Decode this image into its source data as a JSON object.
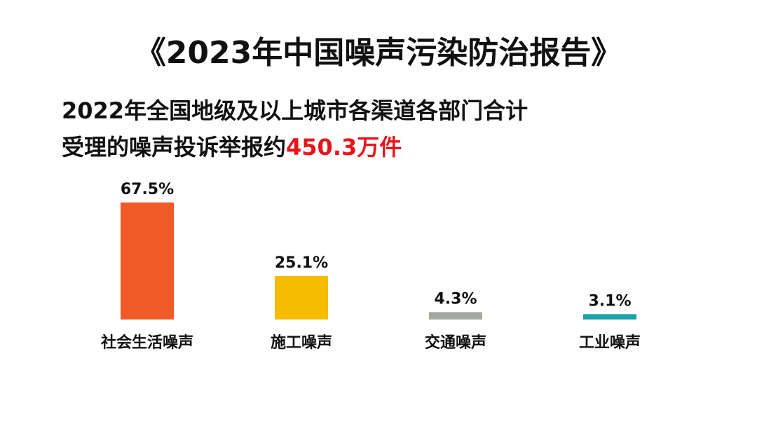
{
  "chart_data": {
    "type": "bar",
    "title": "《2023年中国噪声污染防治报告》",
    "subtitle": [
      "2022年全国地级及以上城市各渠道各部门合计",
      "受理的噪声投诉举报约"
    ],
    "subtitle_highlight": "450.3万件",
    "categories": [
      "社会生活噪声",
      "施工噪声",
      "交通噪声",
      "工业噪声"
    ],
    "values": [
      67.5,
      25.1,
      4.3,
      3.1
    ],
    "value_labels": [
      "67.5%",
      "25.1%",
      "4.3%",
      "3.1%"
    ],
    "colors": [
      "#f05a28",
      "#f5bc00",
      "#a5a99f",
      "#1aa3a6"
    ]
  }
}
